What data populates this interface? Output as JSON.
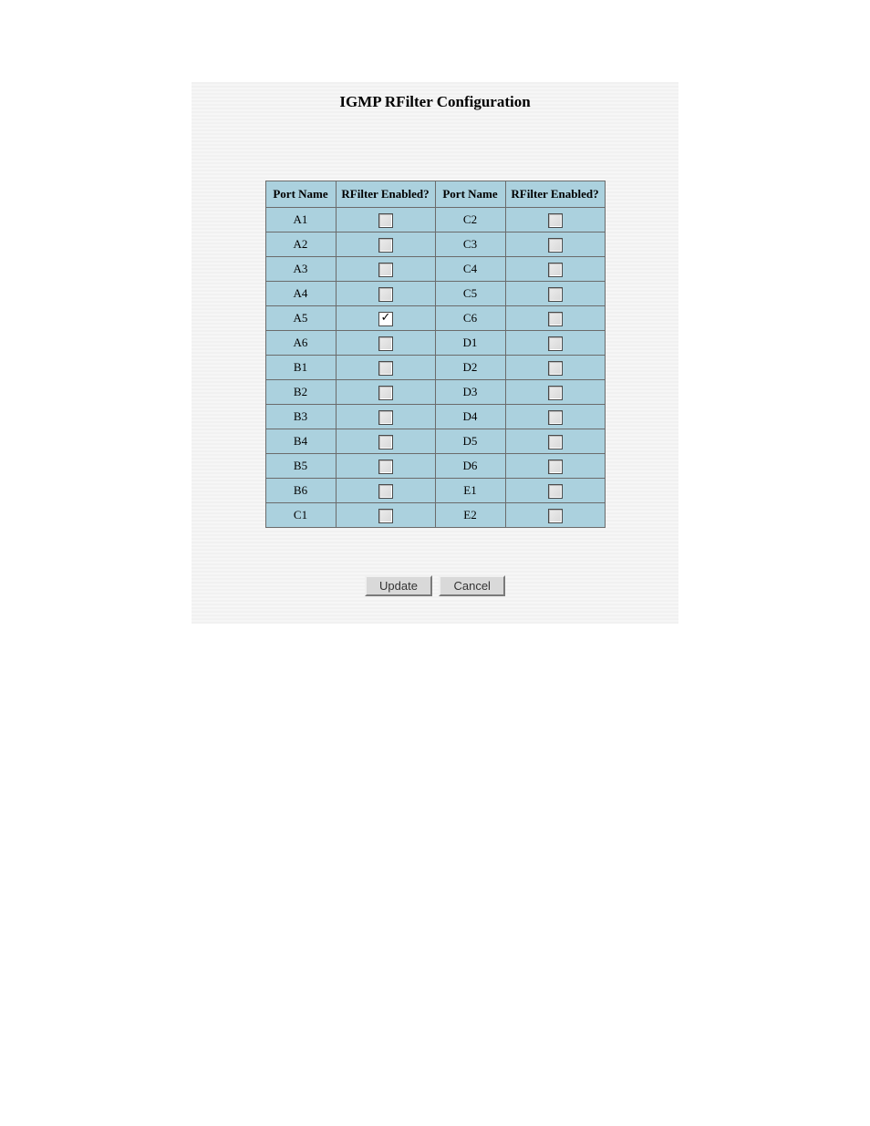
{
  "title": "IGMP RFilter Configuration",
  "headers": {
    "port_name": "Port Name",
    "rfilter_enabled": "RFilter Enabled?"
  },
  "rows": [
    {
      "left_port": "A1",
      "left_checked": false,
      "right_port": "C2",
      "right_checked": false
    },
    {
      "left_port": "A2",
      "left_checked": false,
      "right_port": "C3",
      "right_checked": false
    },
    {
      "left_port": "A3",
      "left_checked": false,
      "right_port": "C4",
      "right_checked": false
    },
    {
      "left_port": "A4",
      "left_checked": false,
      "right_port": "C5",
      "right_checked": false
    },
    {
      "left_port": "A5",
      "left_checked": true,
      "right_port": "C6",
      "right_checked": false
    },
    {
      "left_port": "A6",
      "left_checked": false,
      "right_port": "D1",
      "right_checked": false
    },
    {
      "left_port": "B1",
      "left_checked": false,
      "right_port": "D2",
      "right_checked": false
    },
    {
      "left_port": "B2",
      "left_checked": false,
      "right_port": "D3",
      "right_checked": false
    },
    {
      "left_port": "B3",
      "left_checked": false,
      "right_port": "D4",
      "right_checked": false
    },
    {
      "left_port": "B4",
      "left_checked": false,
      "right_port": "D5",
      "right_checked": false
    },
    {
      "left_port": "B5",
      "left_checked": false,
      "right_port": "D6",
      "right_checked": false
    },
    {
      "left_port": "B6",
      "left_checked": false,
      "right_port": "E1",
      "right_checked": false
    },
    {
      "left_port": "C1",
      "left_checked": false,
      "right_port": "E2",
      "right_checked": false
    }
  ],
  "buttons": {
    "update": "Update",
    "cancel": "Cancel"
  },
  "colors": {
    "panel_bg_light": "#f6f6f6",
    "panel_bg_dark": "#f1f1f1",
    "cell_bg": "#abd1de",
    "cell_border": "#6b6b6b",
    "button_bg": "#d9d9d9"
  }
}
